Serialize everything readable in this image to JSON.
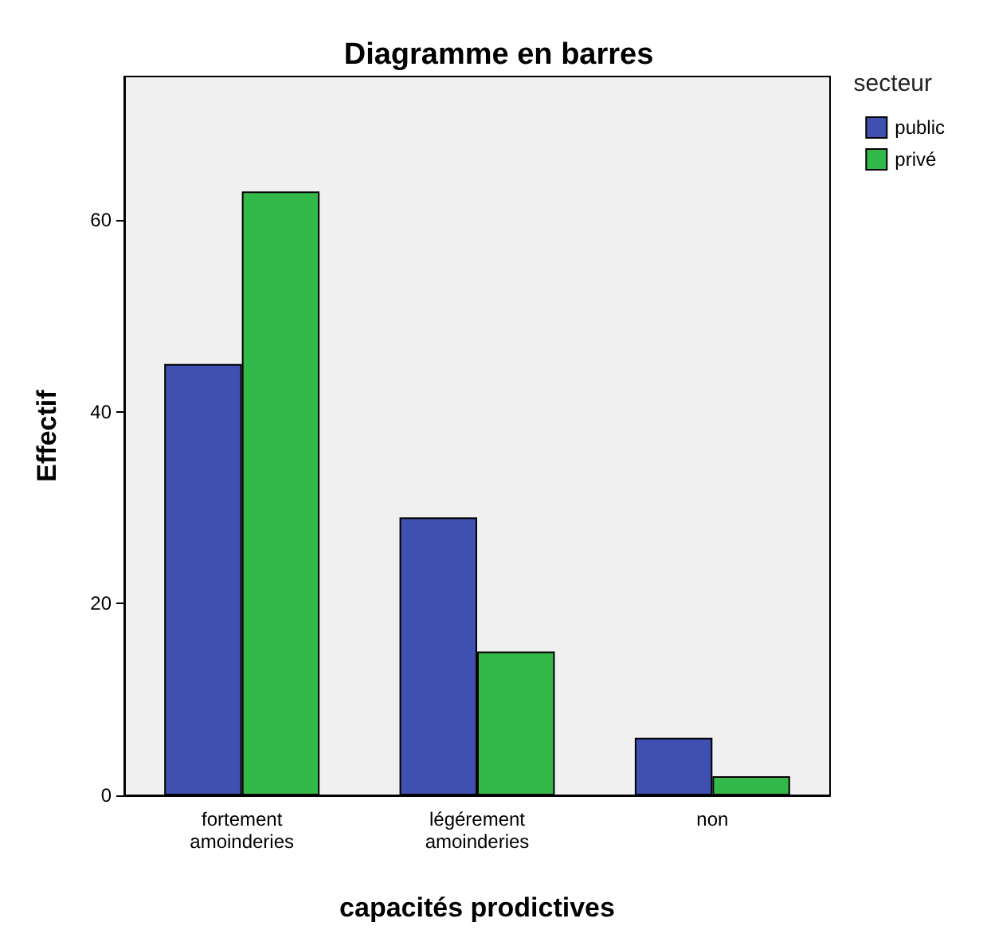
{
  "chart_data": {
    "type": "bar",
    "title": "Diagramme en barres",
    "xlabel": "capacités prodictives",
    "ylabel": "Effectif",
    "legend_title": "secteur",
    "categories": [
      "fortement amoinderies",
      "légérement amoinderies",
      "non"
    ],
    "series": [
      {
        "name": "public",
        "color": "#3f50b0",
        "values": [
          45,
          29,
          6
        ]
      },
      {
        "name": "privé",
        "color": "#33b84a",
        "values": [
          63,
          15,
          2
        ]
      }
    ],
    "ylim": [
      0,
      75
    ],
    "yticks": [
      0,
      20,
      40,
      60
    ],
    "grid": false,
    "legend": "top right"
  }
}
